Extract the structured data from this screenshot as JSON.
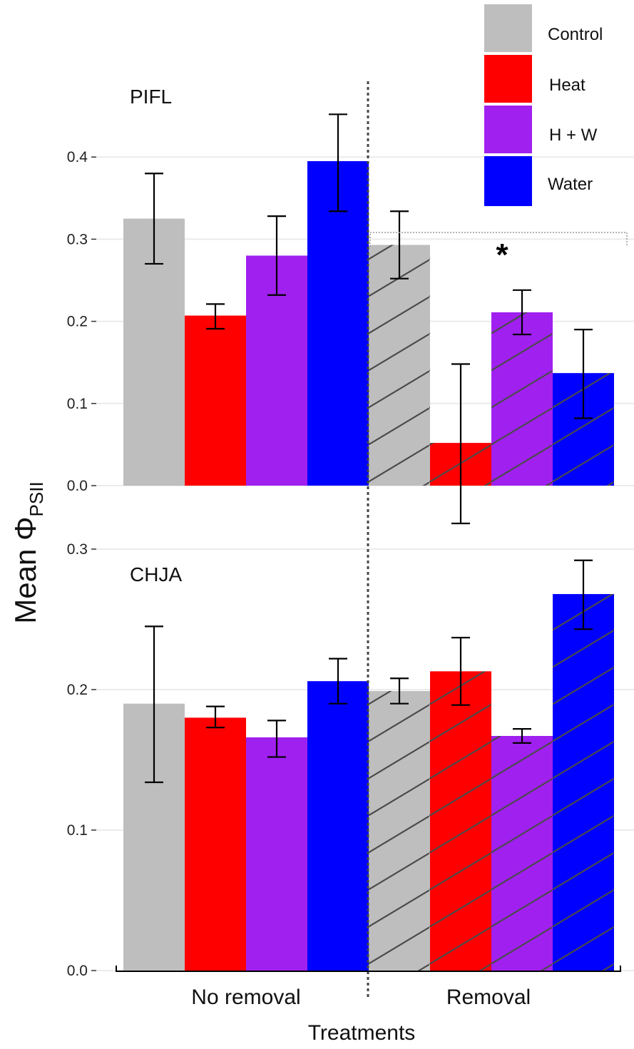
{
  "chart_data": {
    "type": "bar",
    "ylabel_main": "Mean ",
    "ylabel_symbol": "Φ",
    "ylabel_sub": "PSII",
    "xlabel": "Treatments",
    "groups": [
      "No removal",
      "Removal"
    ],
    "legend": [
      {
        "name": "Control",
        "color": "#bebebe"
      },
      {
        "name": "Heat",
        "color": "#ff0000"
      },
      {
        "name": "H + W",
        "color": "#a020f0"
      },
      {
        "name": "Water",
        "color": "#0000ff"
      }
    ],
    "legend_position": "top-right",
    "pattern_note": "Removal bars hatched",
    "panels": [
      {
        "label": "PIFL",
        "ylim": [
          0,
          0.45
        ],
        "yticks": [
          0.0,
          0.1,
          0.2,
          0.3,
          0.4
        ],
        "ytick_labels": [
          "0.0",
          "0.1",
          "0.2",
          "0.3",
          "0.4"
        ],
        "series": [
          {
            "name": "Control",
            "values": [
              0.325,
              0.293
            ],
            "err_low": [
              0.27,
              0.252
            ],
            "err_high": [
              0.38,
              0.334
            ]
          },
          {
            "name": "Heat",
            "values": [
              0.207,
              0.052
            ],
            "err_low": [
              0.191,
              -0.046
            ],
            "err_high": [
              0.221,
              0.148
            ]
          },
          {
            "name": "H + W",
            "values": [
              0.28,
              0.211
            ],
            "err_low": [
              0.232,
              0.184
            ],
            "err_high": [
              0.328,
              0.238
            ]
          },
          {
            "name": "Water",
            "values": [
              0.395,
              0.137
            ],
            "err_low": [
              0.334,
              0.082
            ],
            "err_high": [
              0.452,
              0.19
            ]
          }
        ],
        "annotation": "*"
      },
      {
        "label": "CHJA",
        "ylim": [
          0,
          0.3
        ],
        "yticks": [
          0.0,
          0.1,
          0.2,
          0.3
        ],
        "ytick_labels": [
          "0.0",
          "0.1",
          "0.2",
          "0.3"
        ],
        "series": [
          {
            "name": "Control",
            "values": [
              0.19,
              0.199
            ],
            "err_low": [
              0.134,
              0.19
            ],
            "err_high": [
              0.245,
              0.208
            ]
          },
          {
            "name": "Heat",
            "values": [
              0.18,
              0.213
            ],
            "err_low": [
              0.173,
              0.189
            ],
            "err_high": [
              0.188,
              0.237
            ]
          },
          {
            "name": "H + W",
            "values": [
              0.166,
              0.167
            ],
            "err_low": [
              0.152,
              0.162
            ],
            "err_high": [
              0.178,
              0.172
            ]
          },
          {
            "name": "Water",
            "values": [
              0.206,
              0.268
            ],
            "err_low": [
              0.19,
              0.243
            ],
            "err_high": [
              0.222,
              0.292
            ]
          }
        ]
      }
    ]
  }
}
